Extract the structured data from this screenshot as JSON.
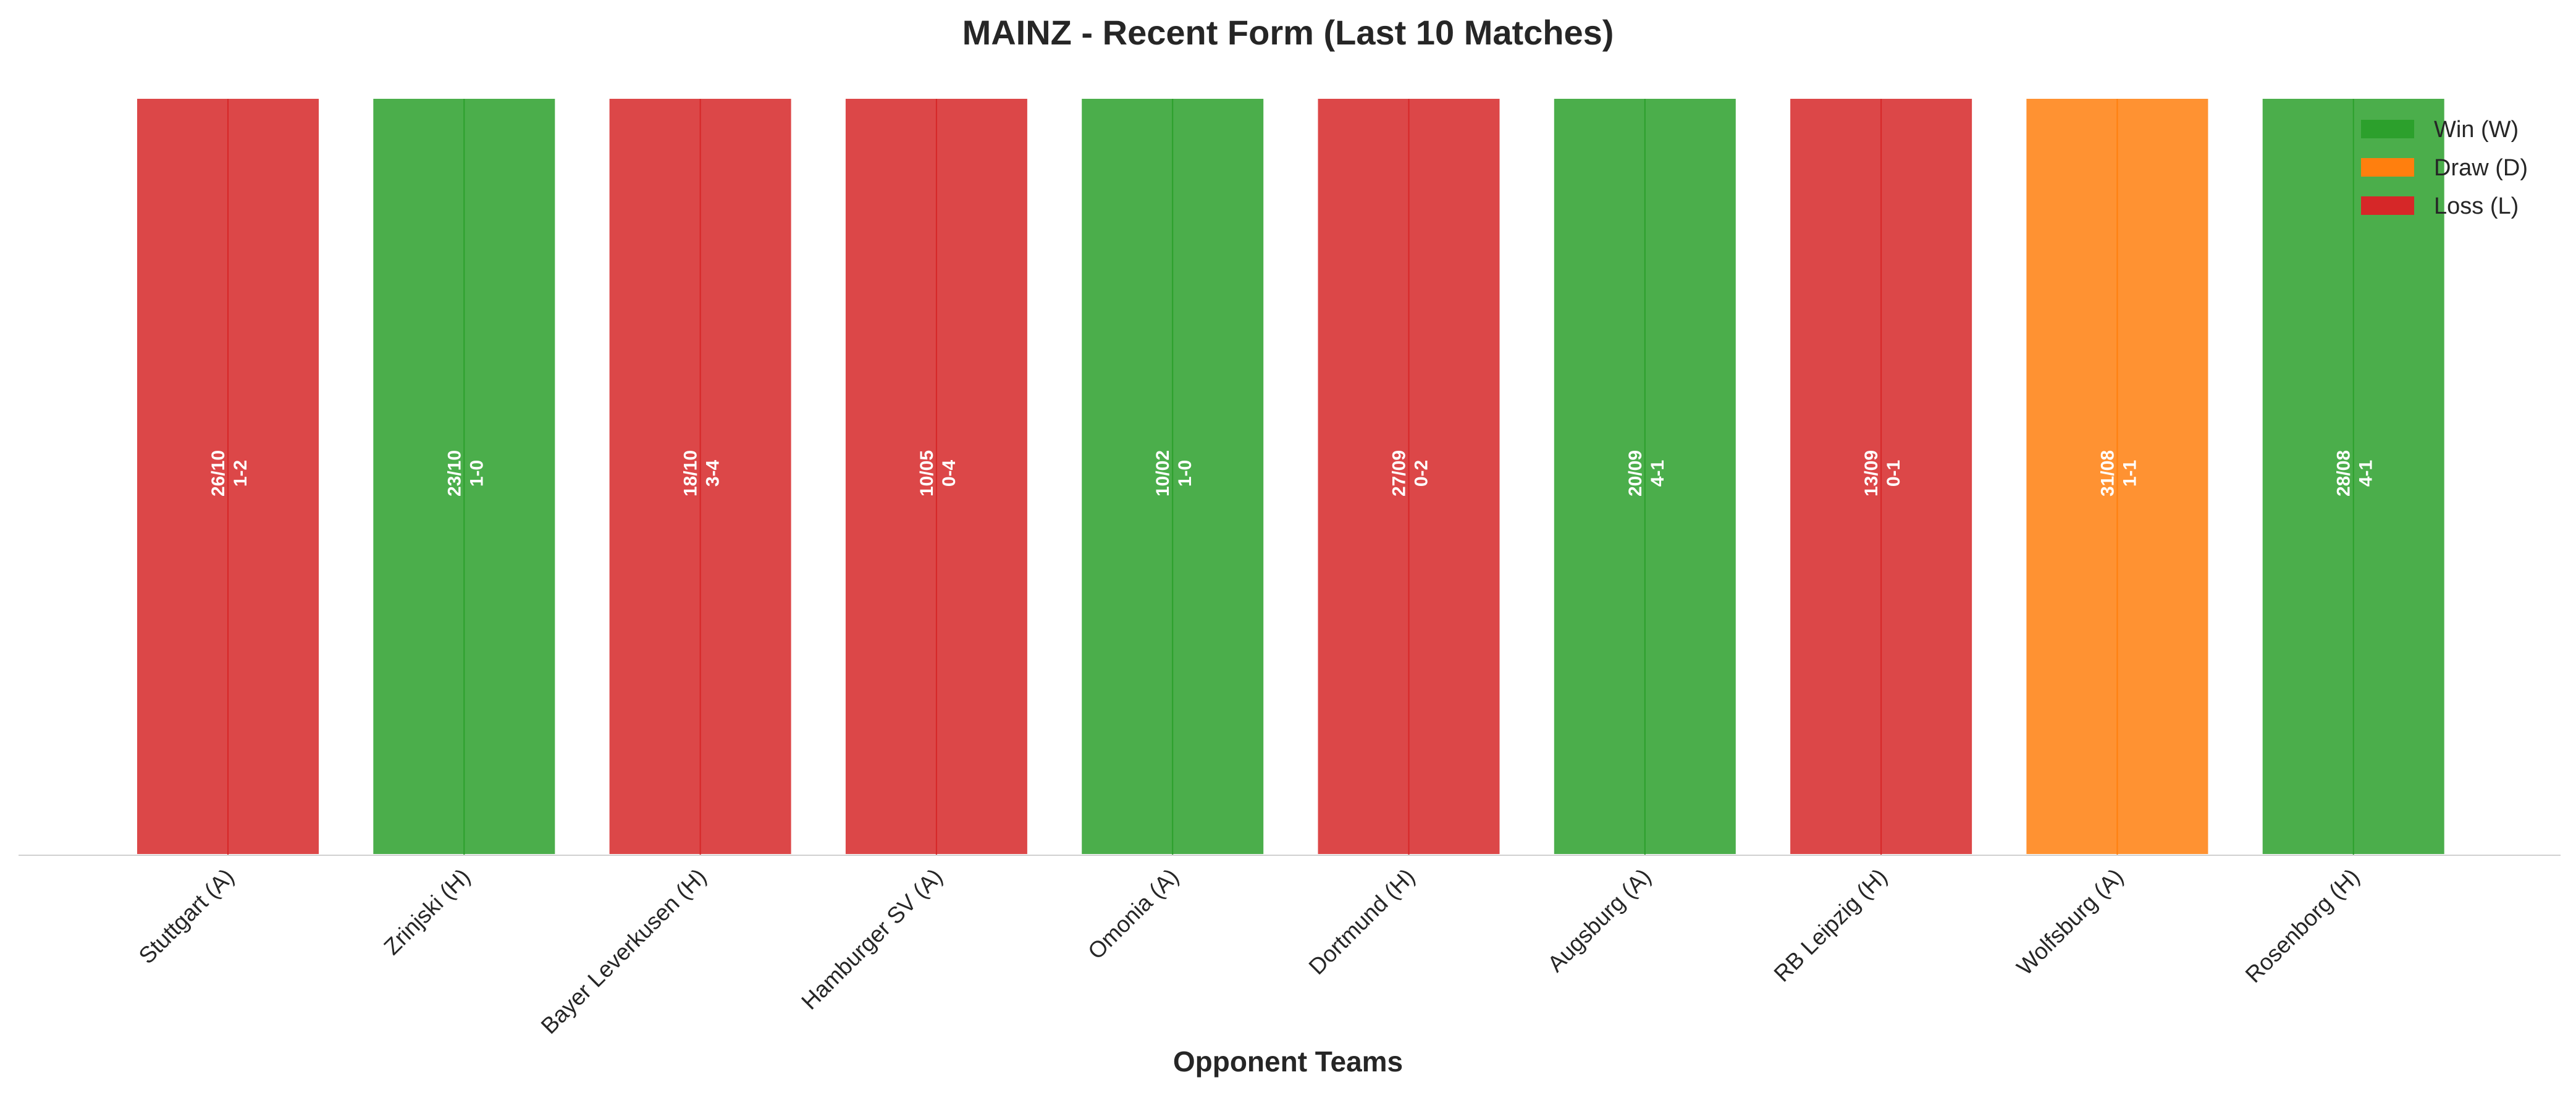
{
  "chart_data": {
    "type": "bar",
    "title": "MAINZ - Recent Form (Last 10 Matches)",
    "xlabel": "Opponent Teams",
    "ylabel": "",
    "ylim": [
      0,
      1
    ],
    "grid": false,
    "legend_position": "top-right",
    "legend": [
      {
        "key": "W",
        "label": "Win (W)",
        "color": "#2ca02c"
      },
      {
        "key": "D",
        "label": "Draw (D)",
        "color": "#ff7f0e"
      },
      {
        "key": "L",
        "label": "Loss (L)",
        "color": "#d62728"
      }
    ],
    "categories": [
      "Stuttgart (A)",
      "Zrinjski (H)",
      "Bayer Leverkusen (H)",
      "Hamburger SV (A)",
      "Omonia (A)",
      "Dortmund (H)",
      "Augsburg (A)",
      "RB Leipzig (H)",
      "Wolfsburg (A)",
      "Rosenborg (H)"
    ],
    "matches": [
      {
        "opponent": "Stuttgart (A)",
        "date": "26/10",
        "score": "1-2",
        "result": "L",
        "value": 1
      },
      {
        "opponent": "Zrinjski (H)",
        "date": "23/10",
        "score": "1-0",
        "result": "W",
        "value": 1
      },
      {
        "opponent": "Bayer Leverkusen (H)",
        "date": "18/10",
        "score": "3-4",
        "result": "L",
        "value": 1
      },
      {
        "opponent": "Hamburger SV (A)",
        "date": "10/05",
        "score": "0-4",
        "result": "L",
        "value": 1
      },
      {
        "opponent": "Omonia (A)",
        "date": "10/02",
        "score": "1-0",
        "result": "W",
        "value": 1
      },
      {
        "opponent": "Dortmund (H)",
        "date": "27/09",
        "score": "0-2",
        "result": "L",
        "value": 1
      },
      {
        "opponent": "Augsburg (A)",
        "date": "20/09",
        "score": "4-1",
        "result": "W",
        "value": 1
      },
      {
        "opponent": "RB Leipzig (H)",
        "date": "13/09",
        "score": "0-1",
        "result": "L",
        "value": 1
      },
      {
        "opponent": "Wolfsburg (A)",
        "date": "31/08",
        "score": "1-1",
        "result": "D",
        "value": 1
      },
      {
        "opponent": "Rosenborg (H)",
        "date": "28/08",
        "score": "4-1",
        "result": "W",
        "value": 1
      }
    ]
  }
}
